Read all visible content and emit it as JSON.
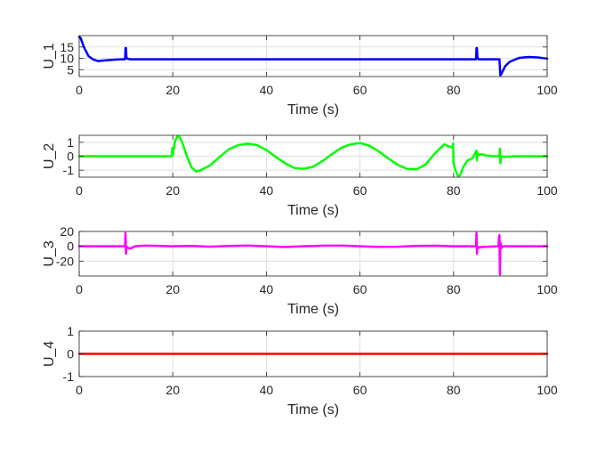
{
  "chart_data": [
    {
      "type": "line",
      "ylabel": "U_1",
      "xlabel": "Time (s)",
      "xlim": [
        0,
        100
      ],
      "ylim": [
        2,
        20
      ],
      "xticks": [
        0,
        20,
        40,
        60,
        80,
        100
      ],
      "yticks": [
        5,
        10,
        15
      ],
      "grid": true,
      "color": "#0000ff",
      "series": [
        {
          "x": [
            0,
            0.3,
            1,
            2,
            3,
            4,
            6,
            9,
            9.8,
            9.9,
            10.0,
            10.1,
            10.3,
            11,
            15,
            20,
            40,
            60,
            80,
            84.8,
            84.9,
            85.0,
            85.1,
            85.3,
            86,
            89.8,
            89.9,
            90.0,
            90.3,
            91,
            92,
            94,
            96,
            98,
            100
          ],
          "y": [
            19.5,
            19,
            15,
            11,
            9.5,
            8.8,
            9.2,
            9.6,
            9.6,
            14.5,
            14.5,
            10.5,
            9.8,
            9.6,
            9.6,
            9.6,
            9.6,
            9.6,
            9.6,
            9.6,
            14.5,
            14.5,
            10.5,
            9.6,
            9.6,
            9.6,
            6,
            2.5,
            3.5,
            6.5,
            8.5,
            10.2,
            10.6,
            10.4,
            9.9
          ]
        }
      ]
    },
    {
      "type": "line",
      "ylabel": "U_2",
      "xlabel": "Time (s)",
      "xlim": [
        0,
        100
      ],
      "ylim": [
        -1.5,
        1.5
      ],
      "xticks": [
        0,
        20,
        40,
        60,
        80,
        100
      ],
      "yticks": [
        -1,
        0,
        1
      ],
      "grid": true,
      "color": "#00ff00",
      "series": [
        {
          "x": [
            0,
            19.8,
            19.9,
            20.0,
            20.5,
            21,
            21.5,
            22,
            23,
            24,
            25,
            26,
            28,
            30,
            32,
            34,
            36,
            38,
            40,
            42,
            44,
            46,
            48,
            50,
            52,
            54,
            56,
            58,
            60,
            62,
            64,
            66,
            68,
            70,
            72,
            74,
            76,
            78,
            79.8,
            79.9,
            80.0,
            80.5,
            81,
            81.5,
            82,
            83,
            84,
            84.9,
            85.0,
            85.1,
            85.5,
            86,
            87,
            88,
            89.8,
            89.9,
            90.0,
            90.2,
            91,
            93,
            100
          ],
          "y": [
            0,
            0,
            0.6,
            0.1,
            1.1,
            1.45,
            1.35,
            1.0,
            0.0,
            -0.8,
            -1.1,
            -1.0,
            -0.65,
            -0.05,
            0.5,
            0.8,
            0.9,
            0.8,
            0.45,
            -0.05,
            -0.5,
            -0.85,
            -0.9,
            -0.75,
            -0.35,
            0.15,
            0.6,
            0.85,
            0.95,
            0.75,
            0.35,
            -0.15,
            -0.6,
            -0.9,
            -0.95,
            -0.6,
            0.2,
            0.85,
            0.6,
            0.9,
            -0.5,
            -1.1,
            -1.45,
            -1.3,
            -0.8,
            -0.3,
            -0.15,
            0.4,
            -0.3,
            0.2,
            0.1,
            0.15,
            0.05,
            0.02,
            0.0,
            0.55,
            -0.5,
            0.0,
            -0.05,
            0.0,
            0.0
          ]
        }
      ]
    },
    {
      "type": "line",
      "ylabel": "U_3",
      "xlabel": "Time (s)",
      "xlim": [
        0,
        100
      ],
      "ylim": [
        -40,
        20
      ],
      "xticks": [
        0,
        20,
        40,
        60,
        80,
        100
      ],
      "yticks": [
        -20,
        0,
        20
      ],
      "grid": true,
      "color": "#ff00ff",
      "series": [
        {
          "x": [
            0,
            9.8,
            9.9,
            10.0,
            10.1,
            10.3,
            11,
            12,
            14,
            20,
            24,
            28,
            32,
            36,
            40,
            44,
            48,
            52,
            56,
            60,
            64,
            68,
            72,
            76,
            80,
            84.8,
            84.9,
            85.0,
            85.1,
            85.5,
            86,
            89.6,
            89.7,
            89.8,
            89.9,
            90.0,
            90.3,
            90.6,
            92,
            100
          ],
          "y": [
            0,
            0,
            18,
            -10,
            0,
            -2,
            -3,
            0,
            1,
            0,
            0.5,
            -0.5,
            0.5,
            1,
            0,
            -1,
            0,
            0.8,
            1,
            0,
            -0.8,
            -0.5,
            0.5,
            0.8,
            0,
            0,
            18,
            -10,
            0,
            -2,
            -1,
            0,
            12,
            15,
            -38,
            5,
            -2,
            0,
            0,
            0
          ]
        }
      ]
    },
    {
      "type": "line",
      "ylabel": "U_4",
      "xlabel": "Time (s)",
      "xlim": [
        0,
        100
      ],
      "ylim": [
        -1,
        1
      ],
      "xticks": [
        0,
        20,
        40,
        60,
        80,
        100
      ],
      "yticks": [
        -1,
        0,
        1
      ],
      "grid": true,
      "color": "#ff0000",
      "series": [
        {
          "x": [
            0,
            100
          ],
          "y": [
            0,
            0
          ]
        }
      ]
    }
  ]
}
